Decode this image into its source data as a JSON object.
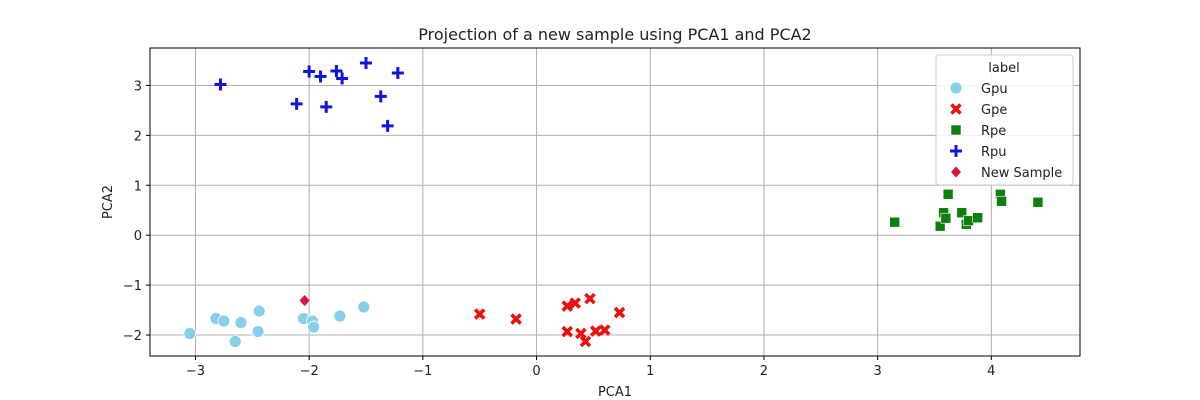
{
  "chart_data": {
    "type": "scatter",
    "title": "Projection of a new sample using PCA1 and PCA2",
    "xlabel": "PCA1",
    "ylabel": "PCA2",
    "xlim": [
      -3.4,
      4.78
    ],
    "ylim": [
      -2.42,
      3.75
    ],
    "xticks": [
      -3,
      -2,
      -1,
      0,
      1,
      2,
      3,
      4
    ],
    "yticks": [
      -2,
      -1,
      0,
      1,
      2,
      3
    ],
    "grid": true,
    "legend": {
      "title": "label",
      "position": "top-right"
    },
    "series": [
      {
        "name": "Gpu",
        "marker": "circle",
        "color": "#87ceeb",
        "points": [
          [
            -3.05,
            -1.97
          ],
          [
            -2.82,
            -1.67
          ],
          [
            -2.75,
            -1.72
          ],
          [
            -2.65,
            -2.13
          ],
          [
            -2.6,
            -1.75
          ],
          [
            -2.45,
            -1.93
          ],
          [
            -2.44,
            -1.52
          ],
          [
            -2.05,
            -1.67
          ],
          [
            -1.97,
            -1.72
          ],
          [
            -1.96,
            -1.84
          ],
          [
            -1.73,
            -1.62
          ],
          [
            -1.52,
            -1.44
          ]
        ]
      },
      {
        "name": "Gpe",
        "marker": "x",
        "color": "#e8110f",
        "points": [
          [
            -0.5,
            -1.58
          ],
          [
            -0.18,
            -1.68
          ],
          [
            0.27,
            -1.42
          ],
          [
            0.27,
            -1.93
          ],
          [
            0.34,
            -1.36
          ],
          [
            0.39,
            -1.97
          ],
          [
            0.43,
            -2.13
          ],
          [
            0.47,
            -1.27
          ],
          [
            0.52,
            -1.92
          ],
          [
            0.6,
            -1.9
          ],
          [
            0.73,
            -1.55
          ]
        ]
      },
      {
        "name": "Rpe",
        "marker": "square",
        "color": "#0d7f0d",
        "points": [
          [
            3.15,
            0.26
          ],
          [
            3.55,
            0.18
          ],
          [
            3.58,
            0.45
          ],
          [
            3.6,
            0.34
          ],
          [
            3.62,
            0.82
          ],
          [
            3.74,
            0.45
          ],
          [
            3.78,
            0.22
          ],
          [
            3.8,
            0.29
          ],
          [
            3.88,
            0.35
          ],
          [
            4.08,
            0.82
          ],
          [
            4.09,
            0.68
          ],
          [
            4.41,
            0.66
          ]
        ]
      },
      {
        "name": "Rpu",
        "marker": "plus",
        "color": "#1414e0",
        "points": [
          [
            -2.78,
            3.02
          ],
          [
            -2.11,
            2.63
          ],
          [
            -2.0,
            3.28
          ],
          [
            -1.9,
            3.18
          ],
          [
            -1.85,
            2.57
          ],
          [
            -1.76,
            3.29
          ],
          [
            -1.71,
            3.14
          ],
          [
            -1.5,
            3.45
          ],
          [
            -1.37,
            2.78
          ],
          [
            -1.31,
            2.19
          ],
          [
            -1.22,
            3.25
          ]
        ]
      },
      {
        "name": "New Sample",
        "marker": "diamond",
        "color": "#dc143c",
        "points": [
          [
            -2.04,
            -1.31
          ]
        ]
      }
    ]
  }
}
